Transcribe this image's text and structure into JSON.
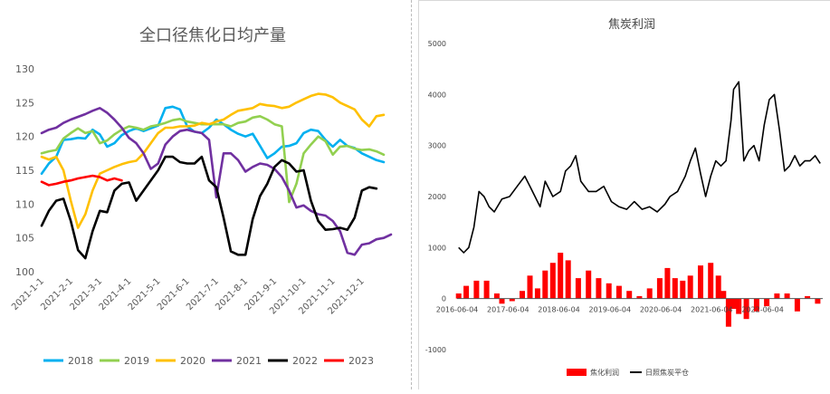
{
  "chart_data": [
    {
      "type": "line",
      "title": "全口径焦化日均产量",
      "xlabel": "",
      "ylabel": "",
      "ylim": [
        100,
        130
      ],
      "yticks": [
        100,
        105,
        110,
        115,
        120,
        125,
        130
      ],
      "x_tick_labels": [
        "2021-1-1",
        "2021-2-1",
        "2021-3-1",
        "2021-4-1",
        "2021-5-1",
        "2021-6-1",
        "2021-7-1",
        "2021-8-1",
        "2021-9-1",
        "2021-10-1",
        "2021-11-1",
        "2021-12-1"
      ],
      "grid": false,
      "legend_position": "bottom",
      "series": [
        {
          "name": "2018",
          "color": "#00b0f0",
          "values": [
            114.5,
            116.0,
            117.0,
            119.5,
            119.6,
            119.8,
            119.7,
            121.0,
            120.3,
            118.5,
            119.0,
            120.2,
            120.8,
            121.2,
            120.8,
            121.2,
            121.6,
            124.2,
            124.4,
            124.0,
            121.5,
            120.7,
            120.5,
            121.3,
            122.5,
            121.8,
            121.0,
            120.4,
            120.0,
            120.4,
            118.6,
            116.8,
            117.5,
            118.5,
            118.6,
            119.0,
            120.5,
            121.0,
            120.8,
            119.5,
            118.5,
            119.5,
            118.6,
            118.3,
            117.5,
            117.0,
            116.5,
            116.2
          ]
        },
        {
          "name": "2019",
          "color": "#92d050",
          "values": [
            117.5,
            117.8,
            118.0,
            119.7,
            120.5,
            121.2,
            120.5,
            120.8,
            119.0,
            119.4,
            120.3,
            121.0,
            121.5,
            121.3,
            121.0,
            121.5,
            121.7,
            122.0,
            122.4,
            122.6,
            122.2,
            122.0,
            121.8,
            121.8,
            121.8,
            121.8,
            121.5,
            122.0,
            122.2,
            122.8,
            123.0,
            122.5,
            121.8,
            121.5,
            110.3,
            113.0,
            117.5,
            118.8,
            120.0,
            119.3,
            117.3,
            118.5,
            118.6,
            118.2,
            118.0,
            118.1,
            117.8,
            117.3
          ]
        },
        {
          "name": "2020",
          "color": "#ffc000",
          "values": [
            117.0,
            116.6,
            117.0,
            115.0,
            110.5,
            106.5,
            108.5,
            112.0,
            114.5,
            115.0,
            115.5,
            115.9,
            116.2,
            116.4,
            117.5,
            119.0,
            120.5,
            121.3,
            121.3,
            121.5,
            121.5,
            121.6,
            122.0,
            121.8,
            122.2,
            122.5,
            123.2,
            123.8,
            124.0,
            124.2,
            124.8,
            124.6,
            124.5,
            124.2,
            124.4,
            125.0,
            125.5,
            126.0,
            126.3,
            126.2,
            125.8,
            125.0,
            124.5,
            124.0,
            122.5,
            121.5,
            123.0,
            123.2
          ]
        },
        {
          "name": "2021",
          "color": "#7030a0",
          "values": [
            120.5,
            121.0,
            121.3,
            122.0,
            122.5,
            122.9,
            123.3,
            123.8,
            124.2,
            123.5,
            122.5,
            121.3,
            119.8,
            119.0,
            117.5,
            115.2,
            116.0,
            118.8,
            120.0,
            120.8,
            121.0,
            120.7,
            120.5,
            119.5,
            111.0,
            117.5,
            117.5,
            116.5,
            114.8,
            115.5,
            116.0,
            115.8,
            115.2,
            114.0,
            112.0,
            109.5,
            109.8,
            109.0,
            108.5,
            108.3,
            107.5,
            106.0,
            102.8,
            102.5,
            104.0,
            104.2,
            104.8,
            105.0,
            105.5
          ]
        },
        {
          "name": "2022",
          "color": "#000000",
          "values": [
            106.8,
            109.0,
            110.5,
            110.8,
            107.5,
            103.2,
            102.0,
            106.0,
            109.0,
            108.8,
            112.0,
            113.0,
            113.2,
            110.5,
            112.0,
            113.5,
            115.0,
            117.0,
            117.0,
            116.2,
            116.0,
            116.0,
            117.0,
            113.5,
            112.5,
            108.0,
            103.0,
            102.5,
            102.5,
            107.8,
            111.2,
            113.0,
            115.5,
            116.5,
            116.0,
            114.8,
            115.0,
            110.5,
            107.5,
            106.2,
            106.3,
            106.5,
            106.2,
            108.0,
            112.0,
            112.5,
            112.3
          ]
        },
        {
          "name": "2023",
          "color": "#ff0000",
          "values": [
            113.3,
            112.8,
            113.0,
            113.3,
            113.5,
            113.8,
            114.0,
            114.2,
            114.0,
            113.5,
            113.8,
            113.5
          ]
        }
      ]
    },
    {
      "type": "line",
      "title": "焦炭利润",
      "xlabel": "",
      "ylabel": "",
      "ylim": [
        -1000,
        5000
      ],
      "yticks": [
        -1000,
        0,
        1000,
        2000,
        3000,
        4000,
        5000
      ],
      "x_tick_labels": [
        "2016-06-04",
        "2017-06-04",
        "2018-06-04",
        "2019-06-04",
        "2020-06-04",
        "2021-06-04",
        "2022-06-04"
      ],
      "x_range": [
        2016.42,
        2023.6
      ],
      "grid": false,
      "legend_position": "bottom",
      "series": [
        {
          "name": "焦化利润",
          "type": "bar",
          "color": "#ff0000",
          "x": [
            2016.45,
            2016.6,
            2016.8,
            2017.0,
            2017.2,
            2017.3,
            2017.5,
            2017.7,
            2017.85,
            2018.0,
            2018.15,
            2018.3,
            2018.45,
            2018.6,
            2018.8,
            2019.0,
            2019.2,
            2019.4,
            2019.6,
            2019.8,
            2020.0,
            2020.2,
            2020.4,
            2020.55,
            2020.7,
            2020.85,
            2021.0,
            2021.2,
            2021.4,
            2021.55,
            2021.65,
            2021.75,
            2021.85,
            2021.95,
            2022.1,
            2022.3,
            2022.5,
            2022.7,
            2022.9,
            2023.1,
            2023.3,
            2023.5
          ],
          "values": [
            100,
            250,
            350,
            350,
            100,
            -100,
            -50,
            150,
            450,
            200,
            550,
            700,
            900,
            750,
            400,
            550,
            400,
            300,
            250,
            150,
            50,
            200,
            400,
            600,
            400,
            350,
            450,
            650,
            700,
            450,
            150,
            -550,
            -200,
            -300,
            -400,
            -250,
            -150,
            100,
            100,
            -250,
            50,
            -100
          ]
        },
        {
          "name": "日照焦炭平仓",
          "type": "line",
          "color": "#000000",
          "x": [
            2016.45,
            2016.55,
            2016.65,
            2016.75,
            2016.85,
            2016.95,
            2017.05,
            2017.15,
            2017.3,
            2017.45,
            2017.6,
            2017.75,
            2017.85,
            2017.95,
            2018.05,
            2018.15,
            2018.3,
            2018.45,
            2018.55,
            2018.65,
            2018.75,
            2018.85,
            2019.0,
            2019.15,
            2019.3,
            2019.45,
            2019.6,
            2019.75,
            2019.9,
            2020.05,
            2020.2,
            2020.35,
            2020.5,
            2020.6,
            2020.75,
            2020.9,
            2021.0,
            2021.1,
            2021.2,
            2021.3,
            2021.4,
            2021.5,
            2021.6,
            2021.7,
            2021.8,
            2021.85,
            2021.95,
            2022.05,
            2022.15,
            2022.25,
            2022.35,
            2022.45,
            2022.55,
            2022.65,
            2022.75,
            2022.85,
            2022.95,
            2023.05,
            2023.15,
            2023.25,
            2023.35,
            2023.45,
            2023.55
          ],
          "values": [
            1000,
            900,
            1000,
            1400,
            2100,
            2000,
            1800,
            1700,
            1950,
            2000,
            2200,
            2400,
            2200,
            2000,
            1800,
            2300,
            2000,
            2100,
            2500,
            2600,
            2800,
            2300,
            2100,
            2100,
            2200,
            1900,
            1800,
            1750,
            1900,
            1750,
            1800,
            1700,
            1850,
            2000,
            2100,
            2400,
            2700,
            2950,
            2450,
            2000,
            2400,
            2700,
            2600,
            2700,
            3500,
            4100,
            4250,
            2700,
            2900,
            3000,
            2700,
            3400,
            3900,
            4000,
            3300,
            2500,
            2600,
            2800,
            2600,
            2700,
            2700,
            2800,
            2650
          ]
        }
      ]
    }
  ]
}
